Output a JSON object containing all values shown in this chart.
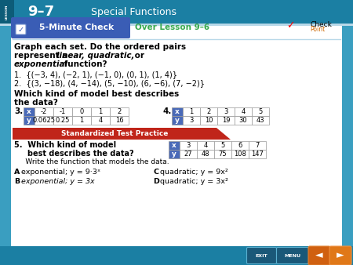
{
  "header_bg": "#1b7fa3",
  "header_dark_strip": "#0d5c78",
  "header_lesson_text": "LESSON",
  "header_number": "9–7",
  "header_title": "Special Functions",
  "five_min_bg": "#3a5db5",
  "five_min_text": "5-Minute Check",
  "over_lesson_text": "Over Lesson 9–6",
  "over_lesson_color": "#3aaa50",
  "body_bg": "white",
  "side_panel_color": "#3a9ec0",
  "bottom_bar_color": "#1b7fa3",
  "line_color": "#b8d8e8",
  "q_intro_line1": "Graph each set. Do the ordered pairs",
  "q_intro_line2_a": "represent a ",
  "q_intro_line2_b": "linear, quadratic,",
  "q_intro_line2_c": " or",
  "q_intro_line3_a": "exponential",
  "q_intro_line3_b": " function?",
  "q1": "1.  {(−3, 4), (−2, 1), (−1, 0), (0, 1), (1, 4)}",
  "q2": "2.  {(3, −18), (4, −14), (5, −10), (6, −6), (7, −2)}",
  "which_line1": "Which kind of model best describes",
  "which_line2": "the data?",
  "std_test_bg": "#c0251a",
  "std_test_text": "Standardized Test Practice",
  "q5_line1": "5.  Which kind of model",
  "q5_line2": "     best describes the data?",
  "q5_line3": "     Write the function that models the data.",
  "table3_x": [
    "-2",
    "-1",
    "0",
    "1",
    "2"
  ],
  "table3_y": [
    "0.0625",
    "0.25",
    "1",
    "4",
    "16"
  ],
  "table4_x": [
    "1",
    "2",
    "3",
    "4",
    "5"
  ],
  "table4_y": [
    "3",
    "10",
    "19",
    "30",
    "43"
  ],
  "table5_x": [
    "3",
    "4",
    "5",
    "6",
    "7"
  ],
  "table5_y": [
    "27",
    "48",
    "75",
    "108",
    "147"
  ],
  "table_header_bg": "#4a6ab8",
  "table_cell_bg": "white",
  "table_cell_bg_alt": "#e8e8f0",
  "exit_btn_bg": "#1a5878",
  "menu_btn_bg": "#1a5878",
  "arrow_btn_bg": "#d06010"
}
